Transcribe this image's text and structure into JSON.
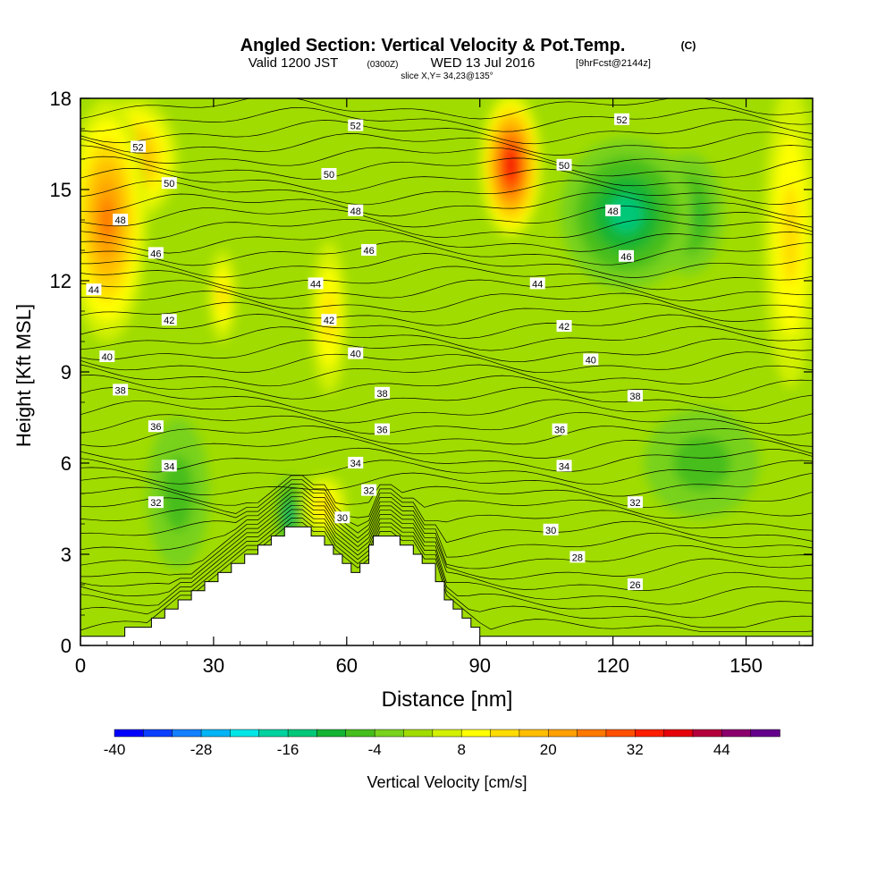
{
  "header": {
    "title": "Angled Section: Vertical Velocity & Pot.Temp.",
    "title_unit": "(C)",
    "subtitle_main": "Valid 1200 JST",
    "subtitle_zulu": "(0300Z)",
    "subtitle_date": "WED 13 Jul 2016",
    "subtitle_fcst": "[9hrFcst@2144z]",
    "slice_info": "slice X,Y= 34,23@135°"
  },
  "chart_data": {
    "type": "heatmap",
    "title": "Angled Section: Vertical Velocity & Pot.Temp.",
    "xlabel": "Distance [nm]",
    "ylabel": "Height [Kft MSL]",
    "xlim": [
      0,
      165
    ],
    "ylim": [
      0,
      18
    ],
    "x_ticks": [
      0,
      30,
      60,
      90,
      120,
      150
    ],
    "y_ticks": [
      0,
      3,
      6,
      9,
      12,
      15,
      18
    ],
    "x_tick_labels": [
      "0",
      "30",
      "60",
      "90",
      "120",
      "150"
    ],
    "y_tick_labels": [
      "0",
      "3",
      "6",
      "9",
      "12",
      "15",
      "18"
    ],
    "colorbar": {
      "label": "Vertical Velocity [cm/s]",
      "min": -40,
      "max": 52,
      "step": 4,
      "tick_values": [
        -40,
        -28,
        -16,
        -4,
        8,
        20,
        32,
        44
      ],
      "tick_labels": [
        "-40",
        "-28",
        "-16",
        "-4",
        "8",
        "20",
        "32",
        "44"
      ],
      "colors": [
        "#0000ff",
        "#0a3fff",
        "#1480ff",
        "#00b4f5",
        "#00e6e6",
        "#00d2a0",
        "#00c878",
        "#14b432",
        "#46be1e",
        "#78d21e",
        "#a0dc00",
        "#d2f000",
        "#ffff00",
        "#ffdc00",
        "#ffbe00",
        "#ffa000",
        "#ff7800",
        "#ff5000",
        "#ff1e00",
        "#e6000a",
        "#b4003c",
        "#8c006e",
        "#64008c"
      ]
    },
    "isentrope_labels": [
      {
        "x": 13,
        "y": 16.4,
        "text": "52"
      },
      {
        "x": 62,
        "y": 17.1,
        "text": "52"
      },
      {
        "x": 122,
        "y": 17.3,
        "text": "52"
      },
      {
        "x": 20,
        "y": 15.2,
        "text": "50"
      },
      {
        "x": 56,
        "y": 15.5,
        "text": "50"
      },
      {
        "x": 109,
        "y": 15.8,
        "text": "50"
      },
      {
        "x": 9,
        "y": 14.0,
        "text": "48"
      },
      {
        "x": 62,
        "y": 14.3,
        "text": "48"
      },
      {
        "x": 120,
        "y": 14.3,
        "text": "48"
      },
      {
        "x": 17,
        "y": 12.9,
        "text": "46"
      },
      {
        "x": 65,
        "y": 13.0,
        "text": "46"
      },
      {
        "x": 123,
        "y": 12.8,
        "text": "46"
      },
      {
        "x": 3,
        "y": 11.7,
        "text": "44"
      },
      {
        "x": 53,
        "y": 11.9,
        "text": "44"
      },
      {
        "x": 103,
        "y": 11.9,
        "text": "44"
      },
      {
        "x": 20,
        "y": 10.7,
        "text": "42"
      },
      {
        "x": 56,
        "y": 10.7,
        "text": "42"
      },
      {
        "x": 109,
        "y": 10.5,
        "text": "42"
      },
      {
        "x": 6,
        "y": 9.5,
        "text": "40"
      },
      {
        "x": 62,
        "y": 9.6,
        "text": "40"
      },
      {
        "x": 115,
        "y": 9.4,
        "text": "40"
      },
      {
        "x": 9,
        "y": 8.4,
        "text": "38"
      },
      {
        "x": 68,
        "y": 8.3,
        "text": "38"
      },
      {
        "x": 125,
        "y": 8.2,
        "text": "38"
      },
      {
        "x": 17,
        "y": 7.2,
        "text": "36"
      },
      {
        "x": 68,
        "y": 7.1,
        "text": "36"
      },
      {
        "x": 108,
        "y": 7.1,
        "text": "36"
      },
      {
        "x": 20,
        "y": 5.9,
        "text": "34"
      },
      {
        "x": 62,
        "y": 6.0,
        "text": "34"
      },
      {
        "x": 109,
        "y": 5.9,
        "text": "34"
      },
      {
        "x": 17,
        "y": 4.7,
        "text": "32"
      },
      {
        "x": 65,
        "y": 5.1,
        "text": "32"
      },
      {
        "x": 125,
        "y": 4.7,
        "text": "32"
      },
      {
        "x": 59,
        "y": 4.2,
        "text": "30"
      },
      {
        "x": 106,
        "y": 3.8,
        "text": "30"
      },
      {
        "x": 112,
        "y": 2.9,
        "text": "28"
      },
      {
        "x": 125,
        "y": 2.0,
        "text": "26"
      }
    ],
    "terrain": [
      [
        0,
        0.3
      ],
      [
        10,
        0.3
      ],
      [
        10,
        0.6
      ],
      [
        13,
        0.6
      ],
      [
        16,
        0.6
      ],
      [
        16,
        0.9
      ],
      [
        19,
        0.9
      ],
      [
        19,
        1.2
      ],
      [
        22,
        1.2
      ],
      [
        22,
        1.5
      ],
      [
        25,
        1.5
      ],
      [
        25,
        1.8
      ],
      [
        28,
        1.8
      ],
      [
        28,
        2.1
      ],
      [
        31,
        2.1
      ],
      [
        31,
        2.4
      ],
      [
        34,
        2.4
      ],
      [
        34,
        2.7
      ],
      [
        37,
        2.7
      ],
      [
        37,
        3.0
      ],
      [
        40,
        3.0
      ],
      [
        40,
        3.3
      ],
      [
        43,
        3.3
      ],
      [
        43,
        3.6
      ],
      [
        46,
        3.6
      ],
      [
        46,
        3.9
      ],
      [
        52,
        3.9
      ],
      [
        52,
        3.6
      ],
      [
        55,
        3.6
      ],
      [
        55,
        3.3
      ],
      [
        57,
        3.3
      ],
      [
        57,
        3.0
      ],
      [
        59,
        3.0
      ],
      [
        59,
        2.7
      ],
      [
        61,
        2.7
      ],
      [
        61,
        2.4
      ],
      [
        63,
        2.4
      ],
      [
        63,
        2.7
      ],
      [
        65,
        2.7
      ],
      [
        65,
        3.3
      ],
      [
        66,
        3.3
      ],
      [
        66,
        3.6
      ],
      [
        72,
        3.6
      ],
      [
        72,
        3.3
      ],
      [
        75,
        3.3
      ],
      [
        75,
        3.0
      ],
      [
        77,
        3.0
      ],
      [
        77,
        2.7
      ],
      [
        80,
        2.7
      ],
      [
        80,
        2.1
      ],
      [
        82,
        2.1
      ],
      [
        82,
        1.5
      ],
      [
        84,
        1.5
      ],
      [
        84,
        1.2
      ],
      [
        86,
        1.2
      ],
      [
        86,
        0.9
      ],
      [
        88,
        0.9
      ],
      [
        88,
        0.6
      ],
      [
        90,
        0.6
      ],
      [
        90,
        0.3
      ],
      [
        165,
        0.3
      ]
    ],
    "features": [
      {
        "x": 97,
        "y": 15.8,
        "value": 34,
        "rx": 7,
        "ry": 2.4
      },
      {
        "x": 6,
        "y": 14.0,
        "value": 24,
        "rx": 9,
        "ry": 4
      },
      {
        "x": 12,
        "y": 16.0,
        "value": 18,
        "rx": 10,
        "ry": 2
      },
      {
        "x": 123,
        "y": 14.2,
        "value": -16,
        "rx": 15,
        "ry": 2.5
      },
      {
        "x": 137,
        "y": 14.2,
        "value": -12,
        "rx": 8,
        "ry": 2
      },
      {
        "x": 47,
        "y": 4.3,
        "value": -16,
        "rx": 3,
        "ry": 1.3
      },
      {
        "x": 56,
        "y": 10.8,
        "value": 10,
        "rx": 4,
        "ry": 2.5
      },
      {
        "x": 55,
        "y": 4.6,
        "value": 12,
        "rx": 5,
        "ry": 1.0
      },
      {
        "x": 140,
        "y": 6.0,
        "value": -8,
        "rx": 13,
        "ry": 1.8
      },
      {
        "x": 22,
        "y": 5.0,
        "value": -6,
        "rx": 7,
        "ry": 2.5
      },
      {
        "x": 160,
        "y": 13.5,
        "value": 12,
        "rx": 6,
        "ry": 5
      },
      {
        "x": 32,
        "y": 11.5,
        "value": 10,
        "rx": 3,
        "ry": 1.5
      }
    ]
  }
}
